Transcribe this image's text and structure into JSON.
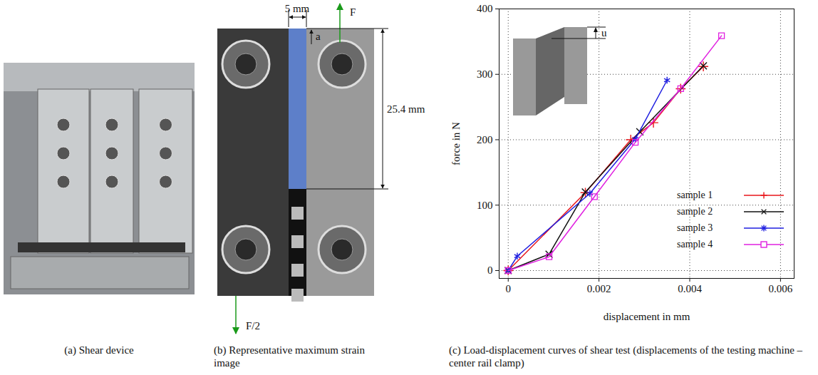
{
  "chart_data": {
    "type": "line",
    "x_label": "displacement in mm",
    "y_label": "force in N",
    "inset_label": "u",
    "xlim": [
      -0.0002,
      0.0063
    ],
    "xticks": [
      0,
      0.002,
      0.004,
      0.006
    ],
    "ylim": [
      -12,
      400
    ],
    "yticks": [
      0,
      100,
      200,
      300,
      400
    ],
    "grid": true,
    "legend": "lower right",
    "series": [
      {
        "name": "sample 1",
        "color": "#e8161b",
        "marker": "plus",
        "x": [
          0,
          0.0017,
          0.0027,
          0.0032,
          0.0038,
          0.0043
        ],
        "values": [
          0,
          119,
          200,
          226,
          278,
          312
        ]
      },
      {
        "name": "sample 2",
        "color": "#111111",
        "marker": "times",
        "x": [
          0,
          0.0009,
          0.0017,
          0.0029,
          0.0043
        ],
        "values": [
          0,
          25,
          120,
          212,
          313
        ]
      },
      {
        "name": "sample 3",
        "color": "#1f1fe0",
        "marker": "asterisk",
        "x": [
          0,
          0.0002,
          0.0018,
          0.0028,
          0.0035
        ],
        "values": [
          0,
          22,
          118,
          201,
          291
        ]
      },
      {
        "name": "sample 4",
        "color": "#e020e0",
        "marker": "square",
        "x": [
          0,
          0.0009,
          0.0019,
          0.0028,
          0.0038,
          0.0047
        ],
        "values": [
          0,
          21,
          113,
          196,
          278,
          359
        ]
      }
    ]
  },
  "figure": {
    "a": {
      "caption": "(a) Shear device"
    },
    "b": {
      "caption": "(b) Representative maximum strain image",
      "annotations": {
        "width": "5 mm",
        "force_top": "F",
        "vector": "a⃗",
        "height": "25.4 mm",
        "force_bottom": "F/2"
      }
    },
    "c": {
      "caption": "(c) Load-displacement curves of shear test (displacements of the testing machine – center rail clamp)"
    }
  }
}
